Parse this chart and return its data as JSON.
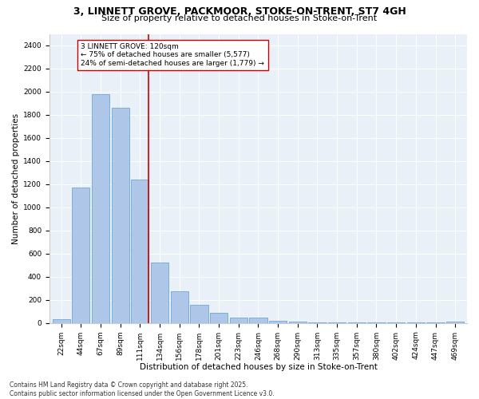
{
  "title1": "3, LINNETT GROVE, PACKMOOR, STOKE-ON-TRENT, ST7 4GH",
  "title2": "Size of property relative to detached houses in Stoke-on-Trent",
  "xlabel": "Distribution of detached houses by size in Stoke-on-Trent",
  "ylabel": "Number of detached properties",
  "categories": [
    "22sqm",
    "44sqm",
    "67sqm",
    "89sqm",
    "111sqm",
    "134sqm",
    "156sqm",
    "178sqm",
    "201sqm",
    "223sqm",
    "246sqm",
    "268sqm",
    "290sqm",
    "313sqm",
    "335sqm",
    "357sqm",
    "380sqm",
    "402sqm",
    "424sqm",
    "447sqm",
    "469sqm"
  ],
  "values": [
    30,
    1170,
    1980,
    1860,
    1240,
    520,
    275,
    155,
    90,
    45,
    45,
    20,
    15,
    5,
    3,
    3,
    3,
    3,
    2,
    2,
    15
  ],
  "bar_color": "#aec6e8",
  "bar_edge_color": "#5a9fd4",
  "vline_color": "#cc0000",
  "annotation_text": "3 LINNETT GROVE: 120sqm\n← 75% of detached houses are smaller (5,577)\n24% of semi-detached houses are larger (1,779) →",
  "annotation_box_color": "#ffffff",
  "annotation_box_edge": "#cc0000",
  "ylim": [
    0,
    2500
  ],
  "yticks": [
    0,
    200,
    400,
    600,
    800,
    1000,
    1200,
    1400,
    1600,
    1800,
    2000,
    2200,
    2400
  ],
  "bg_color": "#eaf0f8",
  "footer1": "Contains HM Land Registry data © Crown copyright and database right 2025.",
  "footer2": "Contains public sector information licensed under the Open Government Licence v3.0.",
  "title_fontsize": 9,
  "subtitle_fontsize": 8,
  "axis_label_fontsize": 7.5,
  "tick_fontsize": 6.5,
  "annotation_fontsize": 6.5,
  "footer_fontsize": 5.5
}
